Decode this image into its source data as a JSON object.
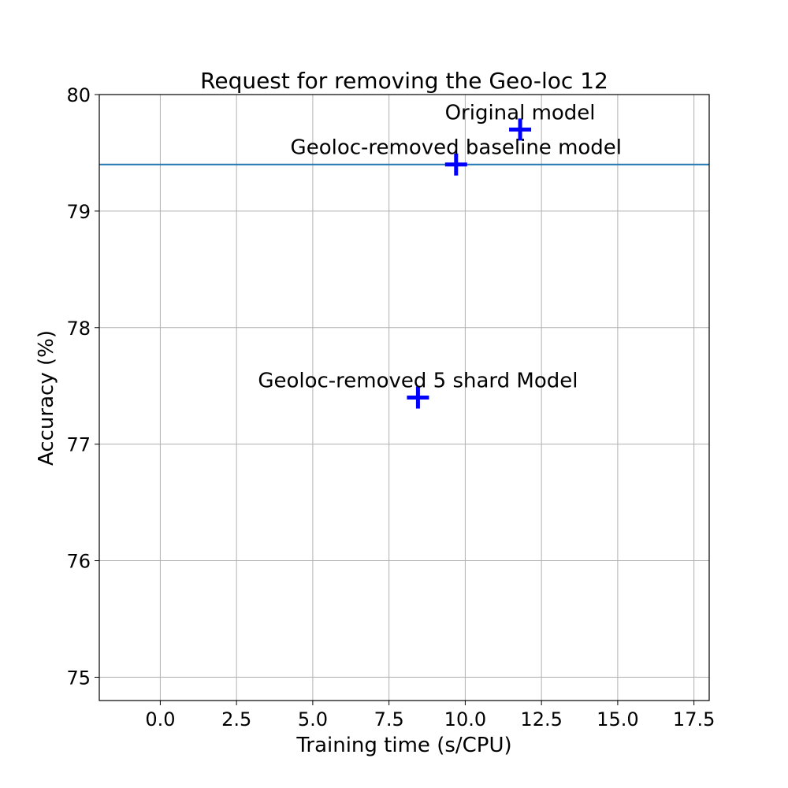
{
  "chart_data": {
    "type": "scatter",
    "title": "Request for removing the Geo-loc 12",
    "xlabel": "Training time (s/CPU)",
    "ylabel": "Accuracy (%)",
    "xlim": [
      -2.0,
      18.0
    ],
    "ylim": [
      74.8,
      80.0
    ],
    "xticks": [
      0.0,
      2.5,
      5.0,
      7.5,
      10.0,
      12.5,
      15.0,
      17.5
    ],
    "xtick_labels": [
      "0.0",
      "2.5",
      "5.0",
      "7.5",
      "10.0",
      "12.5",
      "15.0",
      "17.5"
    ],
    "yticks": [
      75,
      76,
      77,
      78,
      79,
      80
    ],
    "ytick_labels": [
      "75",
      "76",
      "77",
      "78",
      "79",
      "80"
    ],
    "grid": true,
    "marker": "plus",
    "marker_color": "#0000ff",
    "baseline": {
      "y": 79.4,
      "color": "#1f77b4"
    },
    "points": [
      {
        "label": "Original model",
        "x": 11.8,
        "y": 79.7
      },
      {
        "label": "Geoloc-removed baseline model",
        "x": 9.7,
        "y": 79.4
      },
      {
        "label": "Geoloc-removed 5 shard Model",
        "x": 8.45,
        "y": 77.4
      }
    ]
  }
}
